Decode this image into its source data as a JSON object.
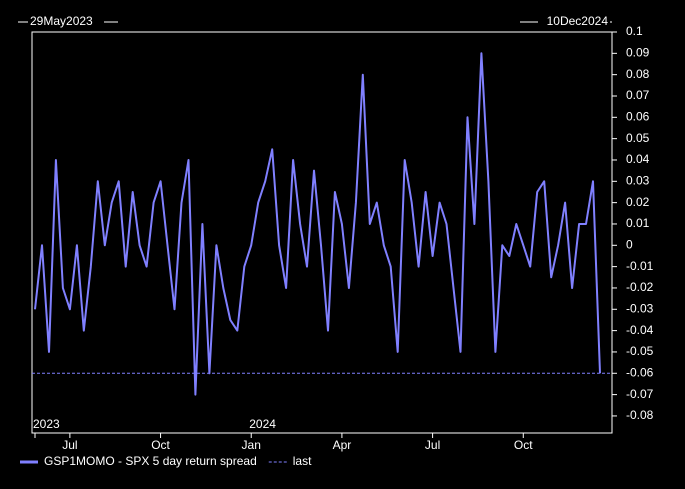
{
  "chart_data": {
    "type": "line",
    "start_label": "29May2023",
    "end_label": "10Dec2024",
    "categories": [
      "",
      null,
      null,
      null,
      null,
      "Jul",
      null,
      null,
      null,
      null,
      null,
      null,
      null,
      null,
      null,
      null,
      null,
      null,
      "Oct",
      null,
      null,
      null,
      null,
      null,
      null,
      null,
      null,
      null,
      null,
      null,
      null,
      "Jan",
      null,
      null,
      null,
      null,
      null,
      null,
      null,
      null,
      null,
      null,
      null,
      null,
      "Apr",
      null,
      null,
      null,
      null,
      null,
      null,
      null,
      null,
      null,
      null,
      null,
      null,
      "Jul",
      null,
      null,
      null,
      null,
      null,
      null,
      null,
      null,
      null,
      null,
      null,
      null,
      "Oct",
      null,
      null,
      null,
      null,
      null,
      null,
      null,
      null,
      null,
      null,
      null
    ],
    "year_labels": [
      "2023",
      null,
      null,
      null,
      null,
      null,
      null,
      null,
      null,
      null,
      null,
      null,
      null,
      null,
      null,
      null,
      null,
      null,
      null,
      null,
      null,
      null,
      null,
      null,
      null,
      null,
      null,
      null,
      null,
      null,
      null,
      "2024",
      null,
      null,
      null,
      null,
      null,
      null,
      null,
      null,
      null,
      null,
      null,
      null,
      null,
      null,
      null,
      null,
      null,
      null,
      null,
      null,
      null,
      null,
      null,
      null,
      null,
      null,
      null,
      null,
      null,
      null,
      null,
      null,
      null,
      null,
      null,
      null,
      null,
      null,
      null,
      null,
      null,
      null,
      null,
      null,
      null,
      null,
      null,
      null,
      null,
      null
    ],
    "series": [
      {
        "name": "GSP1MOMO - SPX 5 day return spread",
        "color": "#8080ff",
        "values": [
          -0.03,
          0.0,
          -0.05,
          0.04,
          -0.02,
          -0.03,
          0.0,
          -0.04,
          -0.01,
          0.03,
          0.0,
          0.02,
          0.03,
          -0.01,
          0.025,
          0.0,
          -0.01,
          0.02,
          0.03,
          0.0,
          -0.03,
          0.02,
          0.04,
          -0.07,
          0.01,
          -0.06,
          0.0,
          -0.02,
          -0.035,
          -0.04,
          -0.01,
          0.0,
          0.02,
          0.03,
          0.045,
          0.0,
          -0.02,
          0.04,
          0.01,
          -0.01,
          0.035,
          0.0,
          -0.04,
          0.025,
          0.01,
          -0.02,
          0.02,
          0.08,
          0.01,
          0.02,
          0.0,
          -0.01,
          -0.05,
          0.04,
          0.02,
          -0.01,
          0.025,
          -0.005,
          0.02,
          0.01,
          -0.02,
          -0.05,
          0.06,
          0.01,
          0.09,
          0.03,
          -0.05,
          0.0,
          -0.005,
          0.01,
          0.0,
          -0.01,
          0.025,
          0.03,
          -0.015,
          0.0,
          0.02,
          -0.02,
          0.01,
          0.01,
          0.03,
          -0.06
        ]
      }
    ],
    "last_name": "last",
    "last_value": -0.06,
    "last_color": "#8080ff",
    "ylim": [
      -0.088,
      0.1
    ],
    "yticks": [
      0.1,
      0.09,
      0.08,
      0.07,
      0.06,
      0.05,
      0.04,
      0.03,
      0.02,
      0.01,
      0,
      -0.01,
      -0.02,
      -0.03,
      -0.04,
      -0.05,
      -0.06,
      -0.07,
      -0.08
    ]
  }
}
